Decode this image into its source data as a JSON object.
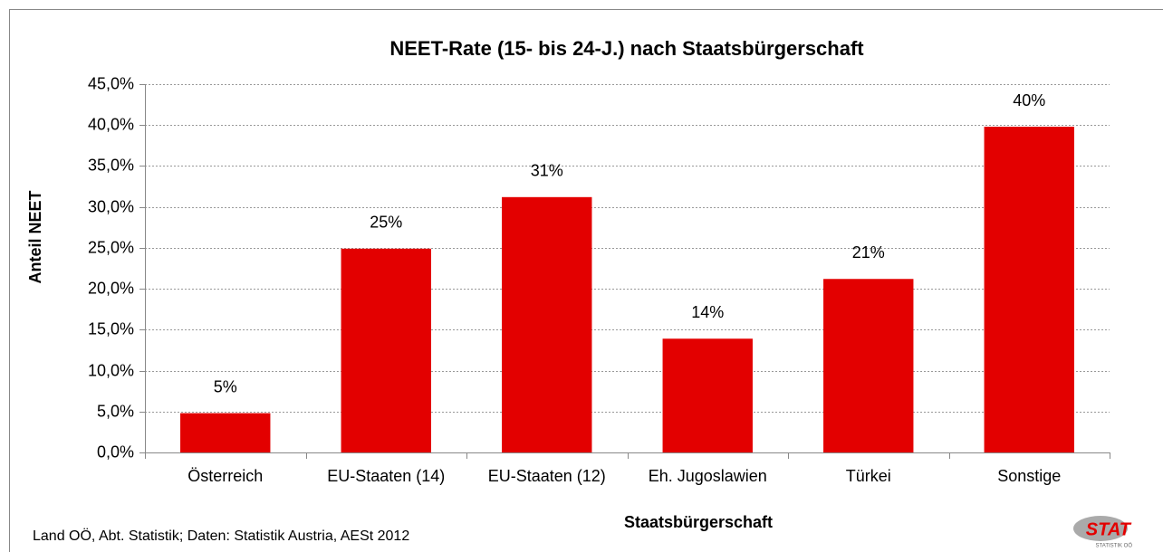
{
  "chart_data": {
    "type": "bar",
    "title": "NEET-Rate (15- bis 24-J.) nach Staatsbürgerschaft",
    "x_label": "Staatsbürgerschaft",
    "y_label": "Anteil NEET",
    "source": "Land OÖ, Abt. Statistik; Daten: Statistik Austria, AESt 2012",
    "logo": {
      "text": "STAT",
      "subtext": "STATISTIK OÖ"
    },
    "categories": [
      "Österreich",
      "EU-Staaten (14)",
      "EU-Staaten (12)",
      "Eh. Jugoslawien",
      "Türkei",
      "Sonstige"
    ],
    "values": [
      4.8,
      24.9,
      31.2,
      13.9,
      21.2,
      39.8
    ],
    "value_labels": [
      "5%",
      "25%",
      "31%",
      "14%",
      "21%",
      "40%"
    ],
    "color": "#e30000",
    "ylim": [
      0,
      45
    ],
    "yticks": [
      {
        "value": 0,
        "label": "0,0%"
      },
      {
        "value": 5,
        "label": "5,0%"
      },
      {
        "value": 10,
        "label": "10,0%"
      },
      {
        "value": 15,
        "label": "15,0%"
      },
      {
        "value": 20,
        "label": "20,0%"
      },
      {
        "value": 25,
        "label": "25,0%"
      },
      {
        "value": 30,
        "label": "30,0%"
      },
      {
        "value": 35,
        "label": "35,0%"
      },
      {
        "value": 40,
        "label": "40,0%"
      },
      {
        "value": 45,
        "label": "45,0%"
      }
    ],
    "grid": true
  }
}
